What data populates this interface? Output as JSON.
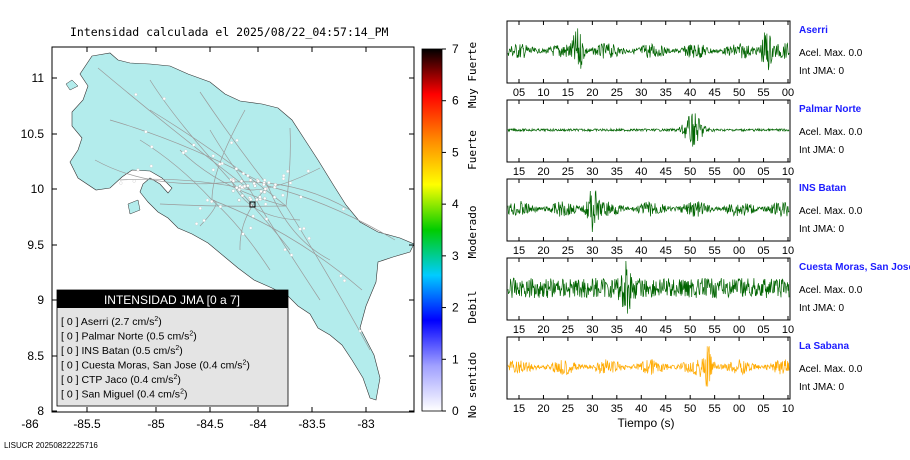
{
  "title": "Intensidad calculada el 2025/08/22_04:57:14_PM",
  "footer": "LISUCR 20250822225716",
  "map": {
    "x_ticks": [
      "-86",
      "-85.5",
      "-85",
      "-84.5",
      "-84",
      "-83.5",
      "-83"
    ],
    "y_ticks": [
      "11",
      "10.5",
      "10",
      "9.5",
      "9",
      "8.5",
      "8"
    ],
    "xlim": [
      -86.15,
      -82.5
    ],
    "ylim": [
      8.0,
      11.22
    ],
    "land_color": "#b3ecec",
    "epicenter_marker": "square"
  },
  "colorbar": {
    "ticks": [
      "0",
      "1",
      "2",
      "3",
      "4",
      "5",
      "6",
      "7"
    ],
    "labels": [
      "No sentido",
      "Debil",
      "Moderado",
      "Fuerte",
      "Muy Fuerte"
    ],
    "colors": [
      "#ffffff",
      "#a0a0ff",
      "#0000ff",
      "#00ccff",
      "#00cc00",
      "#ffff00",
      "#ff8800",
      "#ff0000",
      "#000000"
    ]
  },
  "legend": {
    "title": "INTENSIDAD JMA [0 a 7]",
    "rows": [
      {
        "level": "[ 0 ]",
        "text": "Aserri (2.7 cm/s",
        "sup": "2",
        "close": ")"
      },
      {
        "level": "[ 0 ]",
        "text": "Palmar Norte (0.5 cm/s",
        "sup": "2",
        "close": ")"
      },
      {
        "level": "[ 0 ]",
        "text": "INS Batan (0.5 cm/s",
        "sup": "2",
        "close": ")"
      },
      {
        "level": "[ 0 ]",
        "text": "Cuesta Moras, San Jose (0.4 cm/s",
        "sup": "2",
        "close": ")"
      },
      {
        "level": "[ 0 ]",
        "text": "CTP Jaco (0.4 cm/s",
        "sup": "2",
        "close": ")"
      },
      {
        "level": "[ 0 ]",
        "text": "San Miguel (0.4 cm/s",
        "sup": "2",
        "close": ")"
      }
    ]
  },
  "chart_data": {
    "type": "line",
    "xlabel": "Tiempo (s)",
    "series": [
      {
        "name": "Aserri",
        "accel": "Acel. Max. 0.0",
        "jma": "Int JMA: 0",
        "color": "#006400",
        "ticks": [
          "05",
          "10",
          "15",
          "20",
          "25",
          "30",
          "35",
          "40",
          "45",
          "50",
          "55",
          "00"
        ],
        "burst": [
          0.25,
          0.92
        ]
      },
      {
        "name": "Palmar Norte",
        "accel": "Acel. Max. 0.0",
        "jma": "Int JMA: 0",
        "color": "#006400",
        "ticks": [
          "15",
          "20",
          "25",
          "30",
          "35",
          "40",
          "45",
          "50",
          "55",
          "00",
          "05",
          "10"
        ],
        "burst": [
          0.66
        ]
      },
      {
        "name": "INS Batan",
        "accel": "Acel. Max. 0.0",
        "jma": "Int JMA: 0",
        "color": "#006400",
        "ticks": [
          "15",
          "20",
          "25",
          "30",
          "35",
          "40",
          "45",
          "50",
          "55",
          "00",
          "05",
          "10"
        ],
        "burst": [
          0.3
        ]
      },
      {
        "name": "Cuesta Moras, San Jose",
        "accel": "Acel. Max. 0.0",
        "jma": "Int JMA: 0",
        "color": "#006400",
        "ticks": [
          "15",
          "20",
          "25",
          "30",
          "35",
          "40",
          "45",
          "50",
          "55",
          "00",
          "05",
          "10"
        ],
        "burst": [
          0.42
        ]
      },
      {
        "name": "La Sabana",
        "accel": "Acel. Max. 0.0",
        "jma": "Int JMA: 0",
        "color": "#ffaa00",
        "ticks": [
          "15",
          "20",
          "25",
          "30",
          "35",
          "40",
          "45",
          "50",
          "55",
          "00",
          "05",
          "10"
        ],
        "burst": [
          0.71
        ]
      }
    ]
  }
}
